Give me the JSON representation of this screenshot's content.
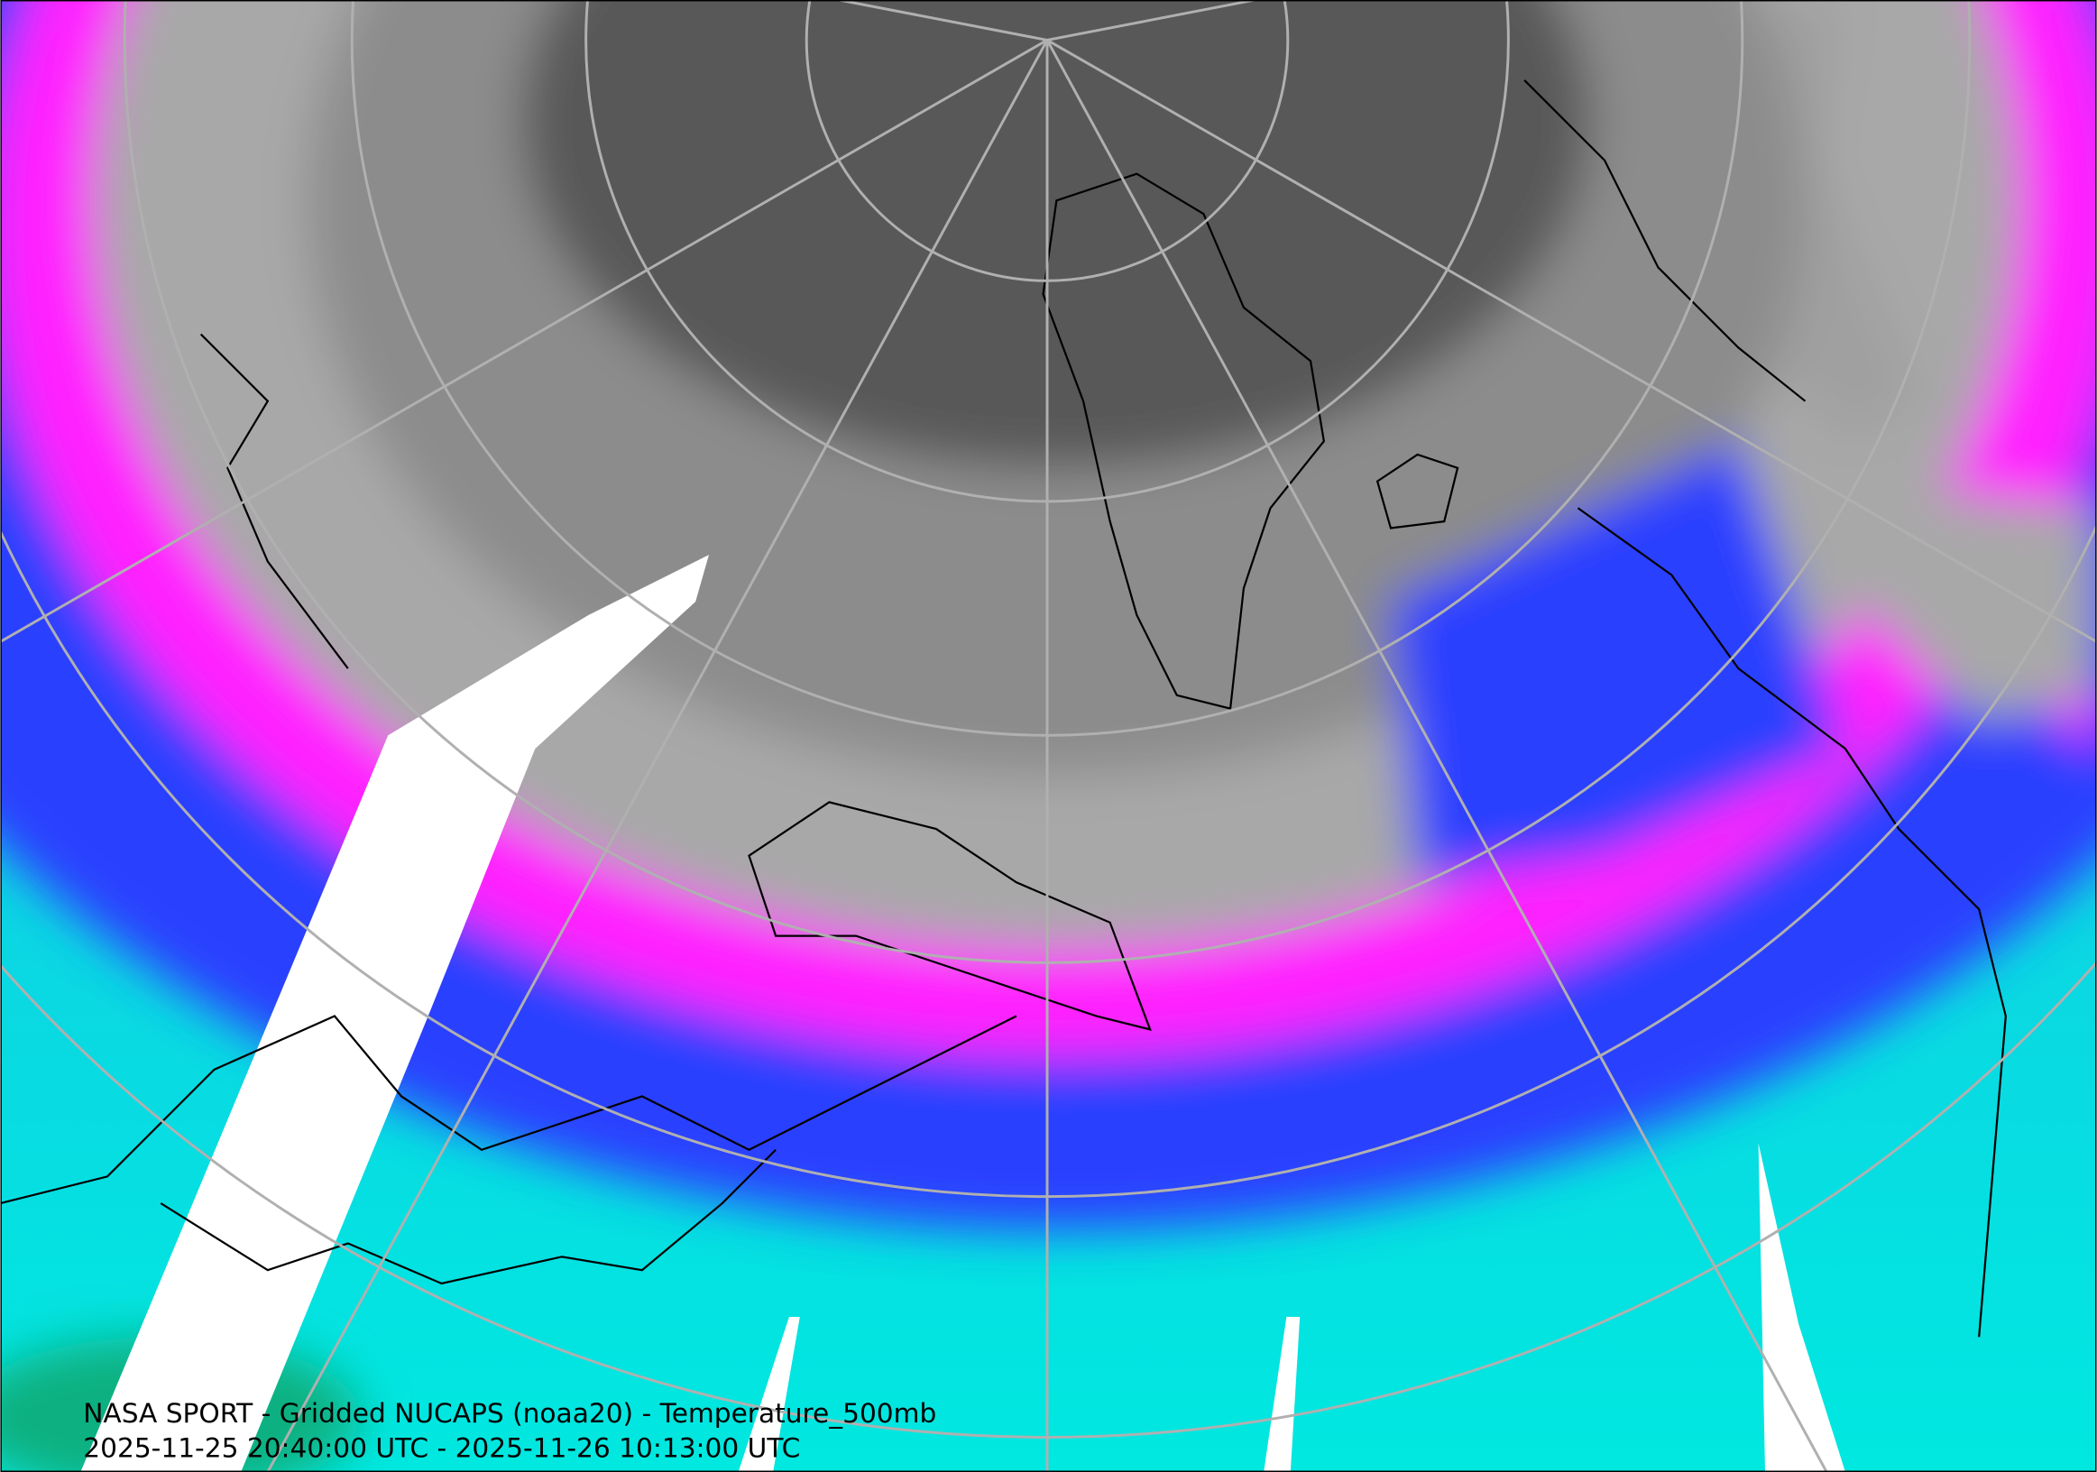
{
  "caption": {
    "title": "NASA SPORT - Gridded NUCAPS (noaa20) - Temperature_500mb",
    "time_range": "2025-11-25 20:40:00 UTC - 2025-11-26 10:13:00 UTC"
  }
}
